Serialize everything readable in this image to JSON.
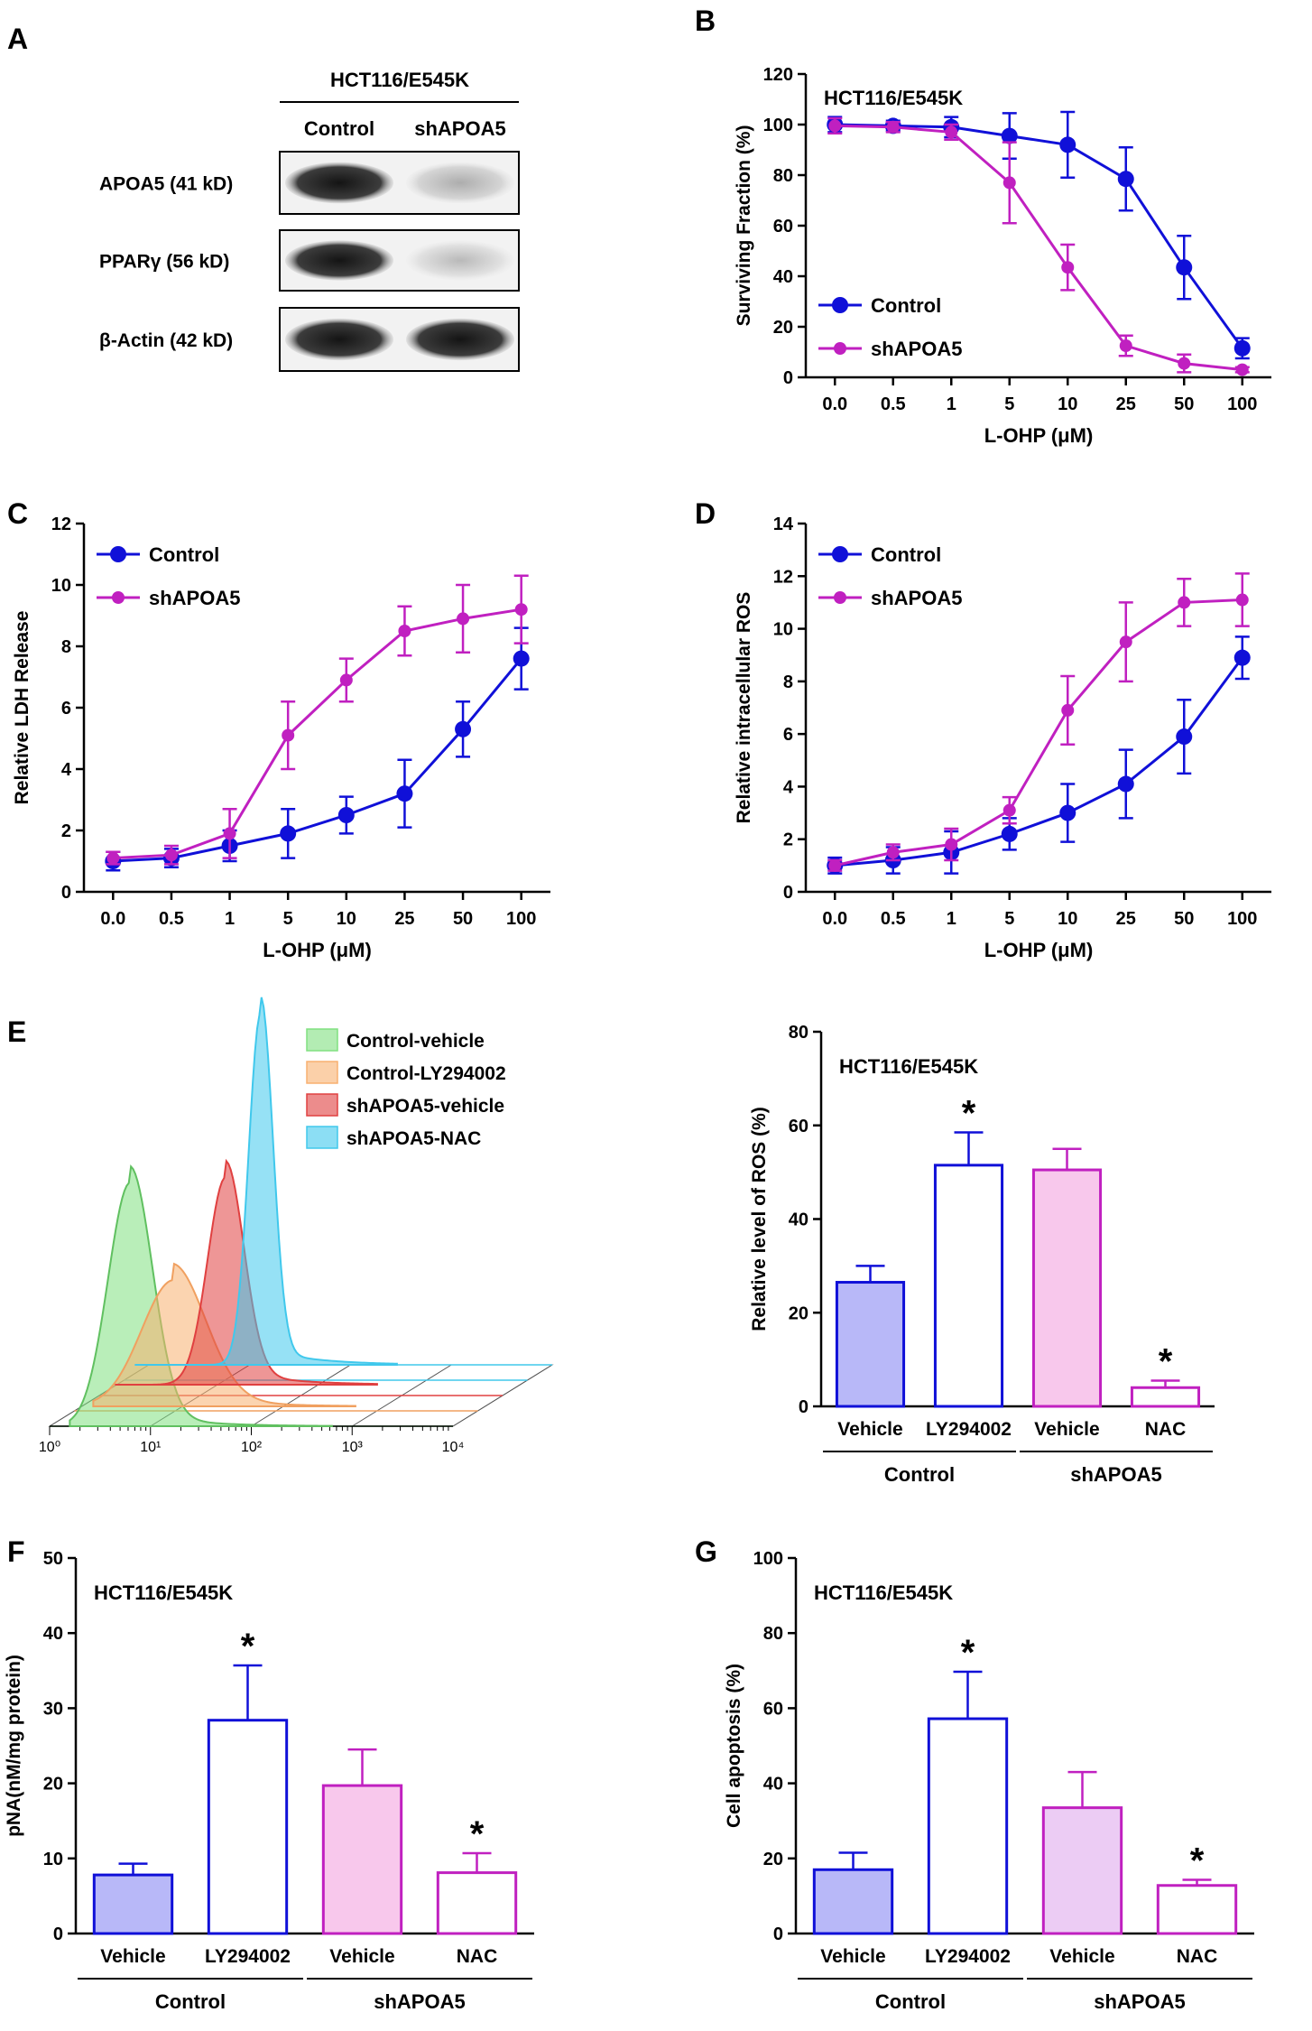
{
  "colors": {
    "control": "#1010d8",
    "shapoa5": "#c020c0",
    "bar_fill_blue": "#b8b8f8",
    "bar_fill_pink": "#f8c8ec",
    "bar_fill_lilac": "#ecccf4",
    "hist_green": "#80e080",
    "hist_orange": "#f8b070",
    "hist_red": "#e04040",
    "hist_cyan": "#40c8ec"
  },
  "panel_a": {
    "letter": "A",
    "cell_line": "HCT116/E545K",
    "lanes": [
      "Control",
      "shAPOA5"
    ],
    "rows": [
      {
        "label": "APOA5 (41 kD)",
        "intensities": [
          1.0,
          0.35
        ]
      },
      {
        "label": "PPARγ (56 kD)",
        "intensities": [
          1.0,
          0.3
        ]
      },
      {
        "label": "β-Actin (42 kD)",
        "intensities": [
          1.0,
          1.0
        ]
      }
    ]
  },
  "chart_data": [
    {
      "id": "B",
      "type": "line",
      "letter": "B",
      "title": "HCT116/E545K",
      "xlabel": "L-OHP (μM)",
      "ylabel": "Surviving Fraction (%)",
      "categories": [
        "0.0",
        "0.5",
        "1",
        "5",
        "10",
        "25",
        "50",
        "100"
      ],
      "ylim": [
        0,
        120
      ],
      "yticks": [
        0,
        20,
        40,
        60,
        80,
        100,
        120
      ],
      "legend": "bottom-left",
      "series": [
        {
          "name": "Control",
          "color": "control",
          "values": [
            100,
            99.5,
            99,
            95.5,
            92,
            78.5,
            43.5,
            11.5
          ],
          "errors": [
            3,
            2,
            4,
            9,
            13,
            12.5,
            12.5,
            4
          ]
        },
        {
          "name": "shAPOA5",
          "color": "shapoa5",
          "values": [
            99.5,
            99,
            97,
            77,
            43.5,
            12.5,
            5.5,
            3
          ],
          "errors": [
            3,
            2,
            3,
            16,
            9,
            4,
            3.5,
            1
          ]
        }
      ]
    },
    {
      "id": "C",
      "type": "line",
      "letter": "C",
      "xlabel": "L-OHP (μM)",
      "ylabel": "Relative LDH Release",
      "categories": [
        "0.0",
        "0.5",
        "1",
        "5",
        "10",
        "25",
        "50",
        "100"
      ],
      "ylim": [
        0,
        12
      ],
      "yticks": [
        0,
        2,
        4,
        6,
        8,
        10,
        12
      ],
      "legend": "top-left",
      "series": [
        {
          "name": "Control",
          "color": "control",
          "values": [
            1.0,
            1.1,
            1.5,
            1.9,
            2.5,
            3.2,
            5.3,
            7.6
          ],
          "errors": [
            0.3,
            0.3,
            0.5,
            0.8,
            0.6,
            1.1,
            0.9,
            1.0
          ]
        },
        {
          "name": "shAPOA5",
          "color": "shapoa5",
          "values": [
            1.1,
            1.2,
            1.9,
            5.1,
            6.9,
            8.5,
            8.9,
            9.2
          ],
          "errors": [
            0.2,
            0.3,
            0.8,
            1.1,
            0.7,
            0.8,
            1.1,
            1.1
          ]
        }
      ]
    },
    {
      "id": "D",
      "type": "line",
      "letter": "D",
      "xlabel": "L-OHP (μM)",
      "ylabel": "Relative intracellular ROS",
      "categories": [
        "0.0",
        "0.5",
        "1",
        "5",
        "10",
        "25",
        "50",
        "100"
      ],
      "ylim": [
        0,
        14
      ],
      "yticks": [
        0,
        2,
        4,
        6,
        8,
        10,
        12,
        14
      ],
      "legend": "top-left",
      "series": [
        {
          "name": "Control",
          "color": "control",
          "values": [
            1.0,
            1.2,
            1.5,
            2.2,
            3.0,
            4.1,
            5.9,
            8.9
          ],
          "errors": [
            0.3,
            0.5,
            0.8,
            0.6,
            1.1,
            1.3,
            1.4,
            0.8
          ]
        },
        {
          "name": "shAPOA5",
          "color": "shapoa5",
          "values": [
            1.0,
            1.5,
            1.8,
            3.1,
            6.9,
            9.5,
            11.0,
            11.1
          ],
          "errors": [
            0.2,
            0.3,
            0.6,
            0.5,
            1.3,
            1.5,
            0.9,
            1.0
          ]
        }
      ]
    },
    {
      "id": "E",
      "type": "bar",
      "letter": "E",
      "title": "HCT116/E545K",
      "ylabel": "Relative level of ROS (%)",
      "categories": [
        "Vehicle",
        "LY294002",
        "Vehicle",
        "NAC"
      ],
      "groups": [
        {
          "name": "Control",
          "span": [
            0,
            1
          ]
        },
        {
          "name": "shAPOA5",
          "span": [
            2,
            3
          ]
        }
      ],
      "ylim": [
        0,
        80
      ],
      "yticks": [
        0,
        20,
        40,
        60,
        80
      ],
      "values": [
        26.5,
        51.5,
        50.5,
        4.0
      ],
      "errors": [
        3.5,
        7,
        4.5,
        1.5
      ],
      "significance": [
        "",
        "*",
        "",
        "*"
      ],
      "fills": [
        "bar_fill_blue",
        "#ffffff",
        "bar_fill_pink",
        "#ffffff"
      ],
      "strokes": [
        "control",
        "control",
        "shapoa5",
        "shapoa5"
      ]
    },
    {
      "id": "F",
      "type": "bar",
      "letter": "F",
      "title": "HCT116/E545K",
      "ylabel": "pNA(nM/mg protein)",
      "categories": [
        "Vehicle",
        "LY294002",
        "Vehicle",
        "NAC"
      ],
      "groups": [
        {
          "name": "Control",
          "span": [
            0,
            1
          ]
        },
        {
          "name": "shAPOA5",
          "span": [
            2,
            3
          ]
        }
      ],
      "ylim": [
        0,
        50
      ],
      "yticks": [
        0,
        10,
        20,
        30,
        40,
        50
      ],
      "values": [
        7.8,
        28.4,
        19.7,
        8.1
      ],
      "errors": [
        1.5,
        7.3,
        4.8,
        2.6
      ],
      "significance": [
        "",
        "*",
        "",
        "*"
      ],
      "fills": [
        "bar_fill_blue",
        "#ffffff",
        "bar_fill_pink",
        "#ffffff"
      ],
      "strokes": [
        "control",
        "control",
        "shapoa5",
        "shapoa5"
      ]
    },
    {
      "id": "G",
      "type": "bar",
      "letter": "G",
      "title": "HCT116/E545K",
      "ylabel": "Cell apoptosis (%)",
      "categories": [
        "Vehicle",
        "LY294002",
        "Vehicle",
        "NAC"
      ],
      "groups": [
        {
          "name": "Control",
          "span": [
            0,
            1
          ]
        },
        {
          "name": "shAPOA5",
          "span": [
            2,
            3
          ]
        }
      ],
      "ylim": [
        0,
        100
      ],
      "yticks": [
        0,
        20,
        40,
        60,
        80,
        100
      ],
      "values": [
        17.0,
        57.2,
        33.5,
        12.8
      ],
      "errors": [
        4.5,
        12.5,
        9.5,
        1.5
      ],
      "significance": [
        "",
        "*",
        "",
        "*"
      ],
      "fills": [
        "bar_fill_blue",
        "#ffffff",
        "bar_fill_lilac",
        "#ffffff"
      ],
      "strokes": [
        "control",
        "control",
        "shapoa5",
        "shapoa5"
      ]
    }
  ],
  "histogram": {
    "xticks": [
      "10⁰",
      "10¹",
      "10²",
      "10³",
      "10⁴"
    ],
    "legend": [
      {
        "label": "Control-vehicle",
        "color": "hist_green"
      },
      {
        "label": "Control-LY294002",
        "color": "hist_orange"
      },
      {
        "label": "shAPOA5-vehicle",
        "color": "hist_red"
      },
      {
        "label": "shAPOA5-NAC",
        "color": "hist_cyan"
      }
    ]
  }
}
